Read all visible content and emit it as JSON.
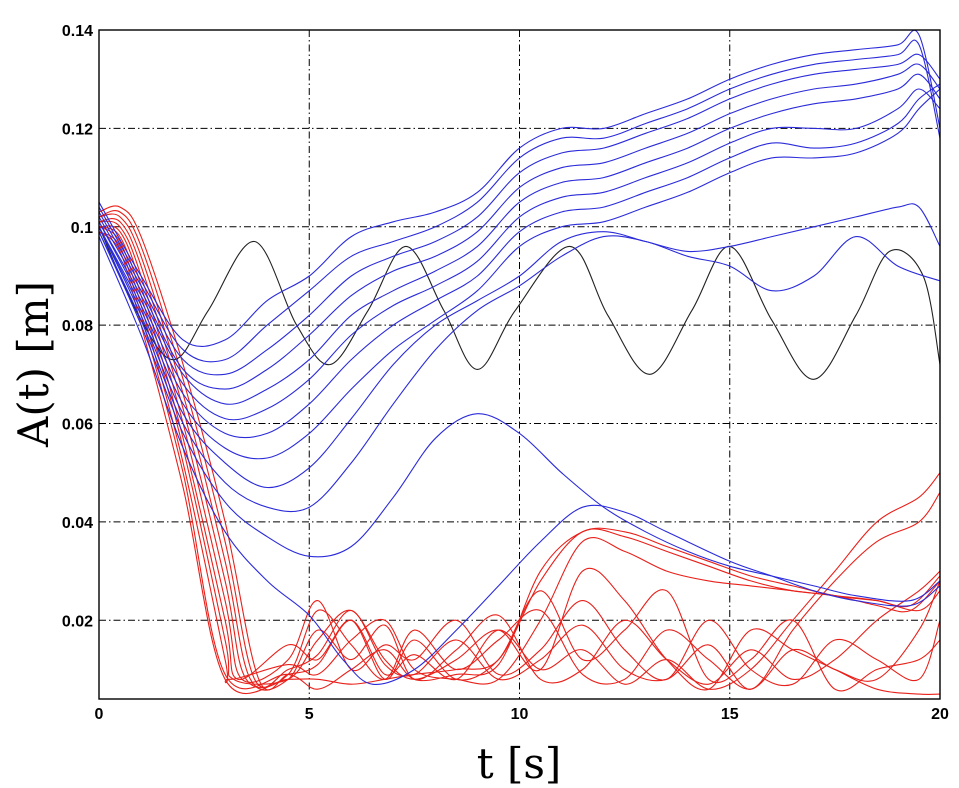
{
  "chart_data": {
    "type": "line",
    "title": "",
    "xlabel": "t [s]",
    "ylabel": "A(t) [m]",
    "xlim": [
      0,
      20
    ],
    "ylim": [
      0.004,
      0.14
    ],
    "grid": true,
    "xticks": [
      0,
      5,
      10,
      15,
      20
    ],
    "xtick_labels": [
      "0",
      "5",
      "10",
      "15",
      "20"
    ],
    "yticks": [
      0.02,
      0.04,
      0.06,
      0.08,
      0.1,
      0.12,
      0.14
    ],
    "ytick_labels": [
      "0.02",
      "0.04",
      "0.06",
      "0.08",
      "0.1",
      "0.12",
      "0.14"
    ],
    "colors": {
      "blue": "#2b2bd9",
      "red": "#e8201a",
      "black": "#222222"
    },
    "series": [
      {
        "name": "black",
        "color": "black",
        "x": [
          0,
          1,
          1.8,
          2.6,
          3.7,
          4.7,
          5.5,
          6.4,
          7.3,
          8.2,
          9,
          9.9,
          11.2,
          12.1,
          13.1,
          14.1,
          15,
          16,
          17,
          18,
          18.8,
          19.6,
          20
        ],
        "y": [
          0.1,
          0.081,
          0.073,
          0.083,
          0.097,
          0.08,
          0.072,
          0.083,
          0.096,
          0.083,
          0.071,
          0.083,
          0.096,
          0.082,
          0.07,
          0.083,
          0.096,
          0.081,
          0.069,
          0.082,
          0.095,
          0.09,
          0.072
        ]
      },
      {
        "name": "blue-1",
        "color": "blue",
        "x": [
          0,
          1,
          2,
          3,
          4,
          5,
          6,
          7,
          8,
          9,
          10,
          11,
          12,
          13,
          14,
          15,
          16,
          17,
          18,
          19,
          19.5,
          20
        ],
        "y": [
          0.105,
          0.09,
          0.077,
          0.077,
          0.085,
          0.09,
          0.098,
          0.101,
          0.103,
          0.107,
          0.116,
          0.12,
          0.12,
          0.123,
          0.126,
          0.13,
          0.133,
          0.135,
          0.136,
          0.137,
          0.139,
          0.12
        ]
      },
      {
        "name": "blue-2",
        "color": "blue",
        "x": [
          0,
          1,
          2,
          3,
          4,
          5,
          6,
          7,
          8,
          9,
          10,
          11,
          12,
          13,
          14,
          15,
          16,
          17,
          18,
          19,
          19.5,
          20
        ],
        "y": [
          0.104,
          0.089,
          0.075,
          0.073,
          0.08,
          0.087,
          0.094,
          0.097,
          0.1,
          0.105,
          0.114,
          0.118,
          0.118,
          0.121,
          0.124,
          0.128,
          0.131,
          0.133,
          0.134,
          0.135,
          0.137,
          0.118
        ]
      },
      {
        "name": "blue-3",
        "color": "blue",
        "x": [
          0,
          1,
          2,
          3,
          4,
          5,
          6,
          7,
          8,
          9,
          10,
          11,
          12,
          13,
          14,
          15,
          16,
          17,
          18,
          19,
          19.5,
          20
        ],
        "y": [
          0.103,
          0.088,
          0.073,
          0.07,
          0.075,
          0.082,
          0.09,
          0.094,
          0.097,
          0.102,
          0.111,
          0.115,
          0.116,
          0.119,
          0.122,
          0.126,
          0.129,
          0.131,
          0.132,
          0.133,
          0.135,
          0.13
        ]
      },
      {
        "name": "blue-4",
        "color": "blue",
        "x": [
          0,
          1,
          2,
          3,
          4,
          5,
          6,
          7,
          8,
          9,
          10,
          11,
          12,
          13,
          14,
          15,
          16,
          17,
          18,
          19,
          19.5,
          20
        ],
        "y": [
          0.102,
          0.087,
          0.071,
          0.067,
          0.071,
          0.078,
          0.086,
          0.091,
          0.094,
          0.099,
          0.108,
          0.112,
          0.113,
          0.116,
          0.119,
          0.123,
          0.126,
          0.128,
          0.129,
          0.131,
          0.133,
          0.128
        ]
      },
      {
        "name": "blue-5",
        "color": "blue",
        "x": [
          0,
          1,
          2,
          3,
          4,
          5,
          6,
          7,
          8,
          9,
          10,
          11,
          12,
          13,
          14,
          15,
          16,
          17,
          18,
          19,
          19.5,
          20
        ],
        "y": [
          0.101,
          0.086,
          0.07,
          0.064,
          0.067,
          0.073,
          0.082,
          0.087,
          0.091,
          0.096,
          0.105,
          0.109,
          0.11,
          0.113,
          0.116,
          0.12,
          0.123,
          0.125,
          0.126,
          0.128,
          0.131,
          0.126
        ]
      },
      {
        "name": "blue-6",
        "color": "blue",
        "x": [
          0,
          1,
          2,
          3,
          4,
          5,
          6,
          7,
          8,
          9,
          10,
          11,
          12,
          13,
          14,
          15,
          16,
          17,
          18,
          19,
          19.5,
          20
        ],
        "y": [
          0.101,
          0.085,
          0.068,
          0.061,
          0.063,
          0.069,
          0.078,
          0.084,
          0.088,
          0.093,
          0.102,
          0.106,
          0.107,
          0.11,
          0.113,
          0.117,
          0.12,
          0.12,
          0.12,
          0.124,
          0.128,
          0.124
        ]
      },
      {
        "name": "blue-7",
        "color": "blue",
        "x": [
          0,
          1,
          2,
          3,
          4,
          5,
          6,
          7,
          8,
          9,
          10,
          11,
          12,
          13,
          14,
          15,
          16,
          17,
          18,
          19,
          19.5,
          20
        ],
        "y": [
          0.1,
          0.084,
          0.066,
          0.058,
          0.058,
          0.064,
          0.073,
          0.08,
          0.085,
          0.09,
          0.099,
          0.103,
          0.104,
          0.107,
          0.11,
          0.114,
          0.117,
          0.116,
          0.117,
          0.121,
          0.126,
          0.129
        ]
      },
      {
        "name": "blue-8",
        "color": "blue",
        "x": [
          0,
          1,
          2,
          3,
          4,
          5,
          6,
          7,
          8,
          9,
          10,
          11,
          12,
          13,
          14,
          15,
          16,
          17,
          18,
          19,
          19.5,
          20
        ],
        "y": [
          0.1,
          0.083,
          0.064,
          0.055,
          0.053,
          0.058,
          0.067,
          0.075,
          0.081,
          0.087,
          0.096,
          0.1,
          0.101,
          0.104,
          0.107,
          0.111,
          0.114,
          0.114,
          0.115,
          0.119,
          0.124,
          0.128
        ]
      },
      {
        "name": "blue-9",
        "color": "blue",
        "x": [
          0,
          1,
          2,
          3,
          4,
          5,
          6,
          7,
          8,
          9,
          10,
          11,
          12,
          13,
          14,
          15,
          16,
          17,
          18,
          19,
          19.5,
          20
        ],
        "y": [
          0.1,
          0.082,
          0.062,
          0.052,
          0.047,
          0.051,
          0.061,
          0.072,
          0.08,
          0.085,
          0.09,
          0.097,
          0.099,
          0.097,
          0.095,
          0.096,
          0.098,
          0.1,
          0.102,
          0.104,
          0.104,
          0.096
        ]
      },
      {
        "name": "blue-10",
        "color": "blue",
        "x": [
          0,
          1,
          2,
          3,
          4,
          5,
          6,
          7,
          8,
          9,
          10,
          11,
          12,
          13,
          14,
          15,
          16,
          17,
          18,
          19,
          20
        ],
        "y": [
          0.099,
          0.081,
          0.06,
          0.048,
          0.043,
          0.043,
          0.052,
          0.064,
          0.075,
          0.083,
          0.088,
          0.094,
          0.098,
          0.097,
          0.094,
          0.092,
          0.087,
          0.09,
          0.098,
          0.092,
          0.089
        ]
      },
      {
        "name": "blue-11",
        "color": "blue",
        "x": [
          0,
          1,
          2,
          3,
          4,
          5,
          6,
          7,
          8,
          9,
          10,
          11,
          12,
          13,
          14,
          15,
          16,
          17,
          18,
          19.3,
          20
        ],
        "y": [
          0.099,
          0.08,
          0.058,
          0.044,
          0.037,
          0.033,
          0.035,
          0.045,
          0.057,
          0.062,
          0.058,
          0.05,
          0.043,
          0.038,
          0.034,
          0.031,
          0.029,
          0.027,
          0.025,
          0.024,
          0.028
        ]
      },
      {
        "name": "blue-12",
        "color": "blue",
        "x": [
          0,
          1,
          2,
          3,
          4,
          5,
          5.8,
          6.5,
          7.5,
          8.5,
          9.5,
          10.5,
          11.5,
          12.5,
          13.5,
          15,
          16,
          17,
          18,
          19.3,
          20
        ],
        "y": [
          0.098,
          0.078,
          0.055,
          0.038,
          0.028,
          0.021,
          0.012,
          0.007,
          0.01,
          0.018,
          0.027,
          0.036,
          0.043,
          0.042,
          0.038,
          0.032,
          0.029,
          0.026,
          0.024,
          0.023,
          0.027
        ]
      },
      {
        "name": "red-1",
        "color": "red",
        "x": [
          0,
          0.5,
          1,
          2,
          3,
          3.8,
          4.5,
          5.2,
          6,
          6.8,
          7.5,
          8.5,
          9.5,
          10.5,
          11.5,
          12.5,
          13.5,
          14.5,
          15.5,
          16.5,
          17.5,
          18.5,
          19.5,
          20
        ],
        "y": [
          0.103,
          0.104,
          0.098,
          0.072,
          0.04,
          0.008,
          0.009,
          0.011,
          0.02,
          0.009,
          0.013,
          0.008,
          0.018,
          0.01,
          0.014,
          0.007,
          0.012,
          0.006,
          0.01,
          0.02,
          0.03,
          0.04,
          0.045,
          0.05
        ]
      },
      {
        "name": "red-2",
        "color": "red",
        "x": [
          0,
          0.5,
          1,
          2,
          3,
          3.7,
          4.5,
          5.2,
          6,
          6.8,
          7.5,
          8.5,
          9.5,
          10.5,
          11.5,
          12.5,
          13.5,
          14.5,
          15.5,
          16.5,
          17.5,
          18.5,
          19.5,
          20
        ],
        "y": [
          0.102,
          0.103,
          0.096,
          0.069,
          0.036,
          0.008,
          0.01,
          0.013,
          0.022,
          0.011,
          0.009,
          0.016,
          0.008,
          0.012,
          0.019,
          0.01,
          0.008,
          0.015,
          0.006,
          0.018,
          0.028,
          0.036,
          0.04,
          0.046
        ]
      },
      {
        "name": "red-3",
        "color": "red",
        "x": [
          0,
          0.5,
          1,
          2,
          3,
          3.6,
          4.5,
          5.2,
          6,
          6.8,
          7.5,
          8.5,
          9.5,
          10.5,
          11.5,
          12.5,
          13.5,
          14.5,
          15.5,
          16.5,
          17.5,
          18.5,
          19.5,
          20
        ],
        "y": [
          0.102,
          0.102,
          0.094,
          0.066,
          0.032,
          0.008,
          0.008,
          0.018,
          0.012,
          0.019,
          0.008,
          0.014,
          0.021,
          0.008,
          0.01,
          0.02,
          0.012,
          0.007,
          0.014,
          0.008,
          0.012,
          0.02,
          0.026,
          0.03
        ]
      },
      {
        "name": "red-4",
        "color": "red",
        "x": [
          0,
          0.5,
          1,
          2,
          3,
          3.5,
          4.5,
          5.2,
          6,
          6.8,
          7.5,
          8.5,
          9.5,
          10.5,
          11.5,
          12.5,
          13.5,
          14.5,
          15.5,
          16.5,
          17.5,
          18.5,
          19.5,
          20
        ],
        "y": [
          0.101,
          0.101,
          0.092,
          0.063,
          0.028,
          0.008,
          0.009,
          0.022,
          0.015,
          0.008,
          0.018,
          0.01,
          0.016,
          0.022,
          0.009,
          0.008,
          0.018,
          0.012,
          0.006,
          0.014,
          0.01,
          0.008,
          0.018,
          0.028
        ]
      },
      {
        "name": "red-5",
        "color": "red",
        "x": [
          0,
          0.5,
          1,
          2,
          3,
          3.4,
          4.5,
          5.2,
          6,
          6.8,
          7.5,
          8.5,
          9.5,
          10.5,
          11.5,
          12.5,
          13.5,
          14.5,
          15.5,
          16.5,
          17.5,
          18.5,
          19.5,
          20
        ],
        "y": [
          0.101,
          0.1,
          0.09,
          0.06,
          0.024,
          0.008,
          0.012,
          0.024,
          0.01,
          0.015,
          0.012,
          0.02,
          0.009,
          0.014,
          0.024,
          0.014,
          0.008,
          0.02,
          0.01,
          0.007,
          0.016,
          0.012,
          0.008,
          0.02
        ]
      },
      {
        "name": "red-6",
        "color": "red",
        "x": [
          0,
          0.5,
          1,
          2,
          3,
          3.3,
          4.5,
          5.2,
          6,
          6.8,
          7.5,
          8.5,
          9.5,
          10.5,
          11.5,
          12.5,
          13.5,
          14.5,
          15.5,
          16.5,
          17.5,
          18.5,
          19.5,
          20
        ],
        "y": [
          0.1,
          0.099,
          0.088,
          0.057,
          0.02,
          0.008,
          0.015,
          0.012,
          0.02,
          0.008,
          0.016,
          0.008,
          0.012,
          0.026,
          0.012,
          0.018,
          0.026,
          0.008,
          0.012,
          0.02,
          0.006,
          0.01,
          0.012,
          0.016
        ]
      },
      {
        "name": "red-7",
        "color": "red",
        "x": [
          0,
          0.5,
          1,
          2,
          3,
          3.2,
          4.5,
          5.2,
          6,
          6.8,
          7.5,
          8.5,
          9.5,
          10.5,
          11.5,
          12.5,
          13.5,
          14.5,
          15.5,
          16.5,
          17.5,
          18.5,
          19.5,
          20
        ],
        "y": [
          0.1,
          0.098,
          0.086,
          0.055,
          0.016,
          0.008,
          0.008,
          0.016,
          0.022,
          0.012,
          0.008,
          0.012,
          0.018,
          0.01,
          0.03,
          0.024,
          0.012,
          0.006,
          0.018,
          0.014,
          0.01,
          0.006,
          0.005,
          0.005
        ]
      },
      {
        "name": "red-8",
        "color": "red",
        "x": [
          0,
          0.5,
          1,
          2,
          3,
          3.1,
          4.5,
          5.2,
          6,
          6.8,
          7.5,
          8.5,
          9.5,
          10.5,
          11.5,
          12.5,
          13.5,
          14.5,
          15.5,
          16.5,
          17.5,
          18.5,
          19.5,
          20
        ],
        "y": [
          0.1,
          0.097,
          0.084,
          0.052,
          0.012,
          0.008,
          0.011,
          0.009,
          0.016,
          0.02,
          0.01,
          0.008,
          0.008,
          0.02,
          0.036,
          0.034,
          0.03,
          0.028,
          0.027,
          0.026,
          0.025,
          0.024,
          0.022,
          0.026
        ]
      },
      {
        "name": "red-9",
        "color": "red",
        "x": [
          0,
          0.5,
          1,
          2,
          3,
          4.5,
          5.2,
          6,
          6.8,
          7.5,
          8.5,
          9.5,
          10.5,
          11.5,
          12.5,
          13.5,
          14.5,
          15.5,
          16.5,
          17.5,
          18.5,
          19.3,
          20
        ],
        "y": [
          0.099,
          0.096,
          0.082,
          0.05,
          0.009,
          0.009,
          0.006,
          0.01,
          0.014,
          0.008,
          0.009,
          0.011,
          0.03,
          0.038,
          0.038,
          0.035,
          0.032,
          0.029,
          0.027,
          0.025,
          0.024,
          0.023,
          0.029
        ]
      },
      {
        "name": "red-10",
        "color": "red",
        "x": [
          0,
          0.5,
          1,
          2,
          3,
          4.5,
          5.2,
          6,
          6.8,
          7.5,
          8.5,
          9.5,
          10.5,
          11.5,
          12.5,
          13.5,
          14.5,
          15.5,
          16.5,
          17.5,
          18.5,
          19.3,
          20
        ],
        "y": [
          0.099,
          0.095,
          0.08,
          0.047,
          0.008,
          0.008,
          0.008,
          0.007,
          0.008,
          0.009,
          0.01,
          0.012,
          0.028,
          0.038,
          0.037,
          0.034,
          0.031,
          0.028,
          0.026,
          0.025,
          0.023,
          0.022,
          0.028
        ]
      }
    ]
  }
}
